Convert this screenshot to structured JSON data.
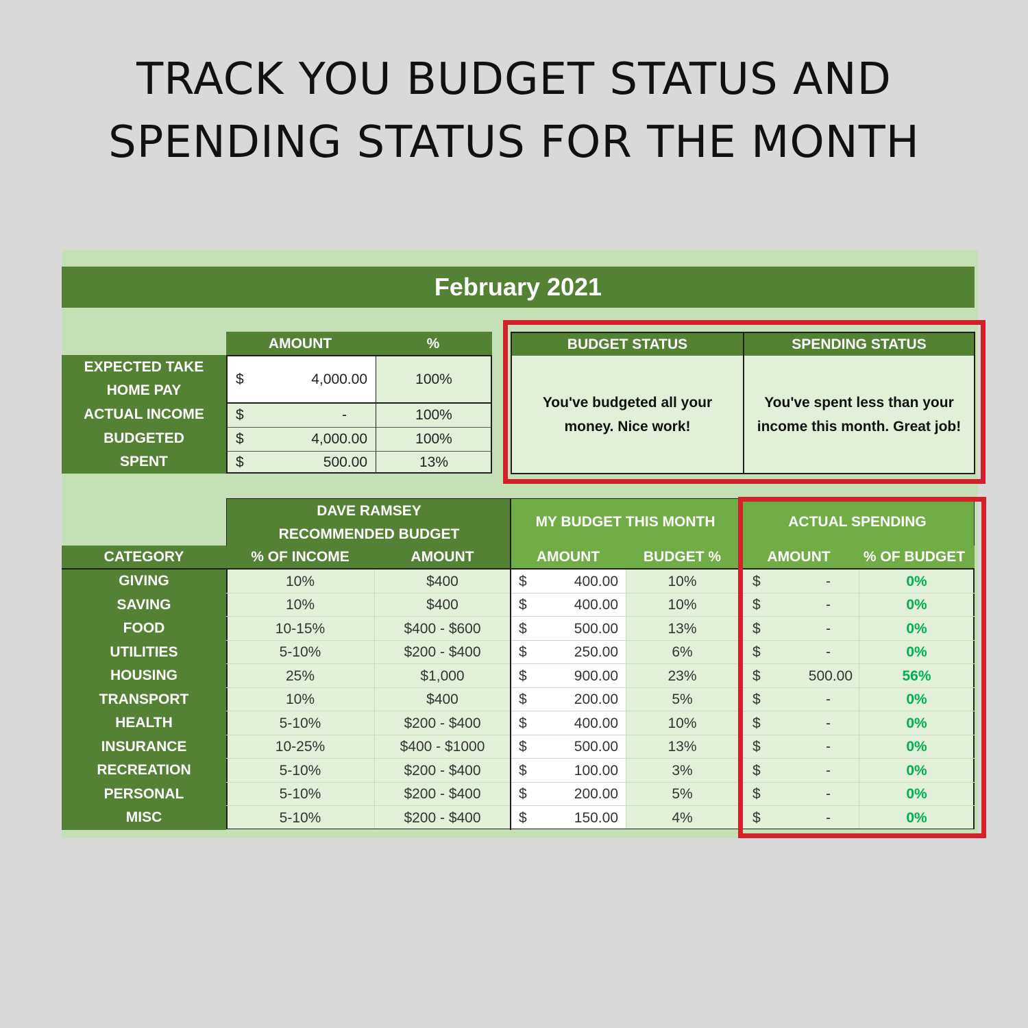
{
  "headline": {
    "line1": "TRACK YOU BUDGET STATUS AND",
    "line2": "SPENDING STATUS FOR THE MONTH"
  },
  "month_title": "February 2021",
  "summary": {
    "col_amount": "AMOUNT",
    "col_pct": "%",
    "rows": [
      {
        "label1": "EXPECTED TAKE",
        "label2": "HOME PAY",
        "dollar": "$",
        "amount": "4,000.00",
        "pct": "100%"
      },
      {
        "label1": "ACTUAL INCOME",
        "label2": "",
        "dollar": "$",
        "amount": "-",
        "pct": "100%"
      },
      {
        "label1": "BUDGETED",
        "label2": "",
        "dollar": "$",
        "amount": "4,000.00",
        "pct": "100%"
      },
      {
        "label1": "SPENT",
        "label2": "",
        "dollar": "$",
        "amount": "500.00",
        "pct": "13%"
      }
    ]
  },
  "status": {
    "budget_header": "BUDGET STATUS",
    "spending_header": "SPENDING STATUS",
    "budget_message": "You've budgeted all your money. Nice work!",
    "spending_message": "You've spent less than your income this month. Great job!"
  },
  "table": {
    "group_dave_line1": "DAVE RAMSEY",
    "group_dave_line2": "RECOMMENDED BUDGET",
    "group_my": "MY BUDGET THIS MONTH",
    "group_actual": "ACTUAL SPENDING",
    "col_category": "CATEGORY",
    "col_pct_income": "% OF INCOME",
    "col_amount": "AMOUNT",
    "col_my_amount": "AMOUNT",
    "col_budget_pct": "BUDGET %",
    "col_actual_amount": "AMOUNT",
    "col_pct_budget": "% OF BUDGET",
    "rows": [
      {
        "category": "GIVING",
        "pct_income": "10%",
        "rec_amount": "$400",
        "my_dollar": "$",
        "my_amount": "400.00",
        "budget_pct": "10%",
        "act_dollar": "$",
        "act_amount": "-",
        "pct_budget": "0%"
      },
      {
        "category": "SAVING",
        "pct_income": "10%",
        "rec_amount": "$400",
        "my_dollar": "$",
        "my_amount": "400.00",
        "budget_pct": "10%",
        "act_dollar": "$",
        "act_amount": "-",
        "pct_budget": "0%"
      },
      {
        "category": "FOOD",
        "pct_income": "10-15%",
        "rec_amount": "$400 - $600",
        "my_dollar": "$",
        "my_amount": "500.00",
        "budget_pct": "13%",
        "act_dollar": "$",
        "act_amount": "-",
        "pct_budget": "0%"
      },
      {
        "category": "UTILITIES",
        "pct_income": "5-10%",
        "rec_amount": "$200 - $400",
        "my_dollar": "$",
        "my_amount": "250.00",
        "budget_pct": "6%",
        "act_dollar": "$",
        "act_amount": "-",
        "pct_budget": "0%"
      },
      {
        "category": "HOUSING",
        "pct_income": "25%",
        "rec_amount": "$1,000",
        "my_dollar": "$",
        "my_amount": "900.00",
        "budget_pct": "23%",
        "act_dollar": "$",
        "act_amount": "500.00",
        "pct_budget": "56%"
      },
      {
        "category": "TRANSPORT",
        "pct_income": "10%",
        "rec_amount": "$400",
        "my_dollar": "$",
        "my_amount": "200.00",
        "budget_pct": "5%",
        "act_dollar": "$",
        "act_amount": "-",
        "pct_budget": "0%"
      },
      {
        "category": "HEALTH",
        "pct_income": "5-10%",
        "rec_amount": "$200 - $400",
        "my_dollar": "$",
        "my_amount": "400.00",
        "budget_pct": "10%",
        "act_dollar": "$",
        "act_amount": "-",
        "pct_budget": "0%"
      },
      {
        "category": "INSURANCE",
        "pct_income": "10-25%",
        "rec_amount": "$400 - $1000",
        "my_dollar": "$",
        "my_amount": "500.00",
        "budget_pct": "13%",
        "act_dollar": "$",
        "act_amount": "-",
        "pct_budget": "0%"
      },
      {
        "category": "RECREATION",
        "pct_income": "5-10%",
        "rec_amount": "$200 - $400",
        "my_dollar": "$",
        "my_amount": "100.00",
        "budget_pct": "3%",
        "act_dollar": "$",
        "act_amount": "-",
        "pct_budget": "0%"
      },
      {
        "category": "PERSONAL",
        "pct_income": "5-10%",
        "rec_amount": "$200 - $400",
        "my_dollar": "$",
        "my_amount": "200.00",
        "budget_pct": "5%",
        "act_dollar": "$",
        "act_amount": "-",
        "pct_budget": "0%"
      },
      {
        "category": "MISC",
        "pct_income": "5-10%",
        "rec_amount": "$200 - $400",
        "my_dollar": "$",
        "my_amount": "150.00",
        "budget_pct": "4%",
        "act_dollar": "$",
        "act_amount": "-",
        "pct_budget": "0%"
      }
    ]
  },
  "colors": {
    "dark_green": "#548235",
    "light_green": "#70ad47",
    "sheet_bg": "#c5e0b4",
    "cell_bg": "#e2efd9",
    "highlight_red": "#d3202a",
    "positive_pct": "#00b050"
  }
}
